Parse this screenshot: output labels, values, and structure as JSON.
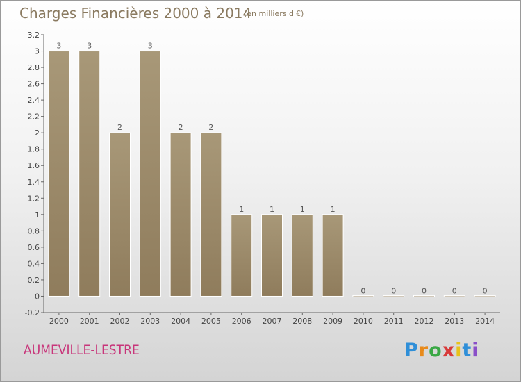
{
  "title": "Charges Financières 2000 à 2014",
  "unit_note": "(en milliers d'€)",
  "commune": "AUMEVILLE-LESTRE",
  "logo": {
    "letters": [
      "P",
      "r",
      "o",
      "x",
      "i",
      "t",
      "i"
    ],
    "colors": [
      "#2f8fd8",
      "#e88a1a",
      "#3aa845",
      "#d83a3a",
      "#e8c21a",
      "#2f8fd8",
      "#8a4fc8"
    ]
  },
  "colors": {
    "bar": "#8f7c5c",
    "bar_light": "#a89878",
    "text": "#8a7a60",
    "commune": "#c8357a",
    "axis": "#666666"
  },
  "chart_data": {
    "type": "bar",
    "categories": [
      "2000",
      "2001",
      "2002",
      "2003",
      "2004",
      "2005",
      "2006",
      "2007",
      "2008",
      "2009",
      "2010",
      "2011",
      "2012",
      "2013",
      "2014"
    ],
    "values": [
      3,
      3,
      2,
      3,
      2,
      2,
      1,
      1,
      1,
      1,
      0,
      0,
      0,
      0,
      0
    ],
    "data_labels": [
      "3",
      "3",
      "2",
      "3",
      "2",
      "2",
      "1",
      "1",
      "1",
      "1",
      "0",
      "0",
      "0",
      "0",
      "0"
    ],
    "ylim": [
      -0.2,
      3.2
    ],
    "y_ticks": [
      -0.2,
      0,
      0.2,
      0.4,
      0.6,
      0.8,
      1,
      1.2,
      1.4,
      1.6,
      1.8,
      2,
      2.2,
      2.4,
      2.6,
      2.8,
      3,
      3.2
    ],
    "y_tick_labels": [
      "-0.2",
      "0",
      "0.2",
      "0.4",
      "0.6",
      "0.8",
      "1",
      "1.2",
      "1.4",
      "1.6",
      "1.8",
      "2",
      "2.2",
      "2.4",
      "2.6",
      "2.8",
      "3",
      "3.2"
    ],
    "grid": false,
    "xlabel": "",
    "ylabel": ""
  }
}
